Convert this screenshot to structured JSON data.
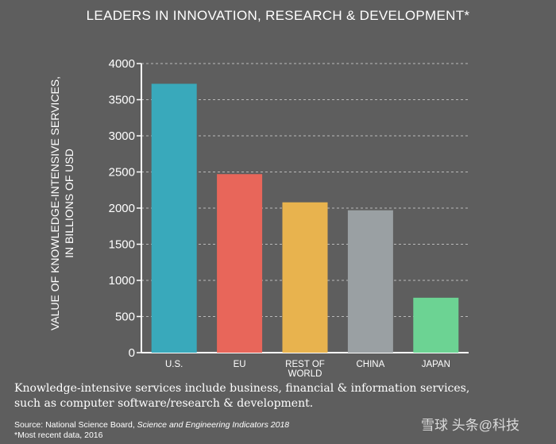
{
  "title": "LEADERS IN INNOVATION, RESEARCH & DEVELOPMENT*",
  "ylabel_line1": "VALUE OF KNOWLEDGE-INTENSIVE SERVICES,",
  "ylabel_line2": "IN BILLIONS OF USD",
  "description_line1": "Knowledge-intensive services include business, financial & information services,",
  "description_line2": "such as computer software/research & development.",
  "source_prefix": "Source: National Science Board, ",
  "source_title": "Science and Engineering Indicators 2018",
  "footnote": "*Most recent data, 2016",
  "watermark": "雪球 头条@科技",
  "chart_data": {
    "type": "bar",
    "title": "LEADERS IN INNOVATION, RESEARCH & DEVELOPMENT*",
    "xlabel": "",
    "ylabel": "VALUE OF KNOWLEDGE-INTENSIVE SERVICES, IN BILLIONS OF USD",
    "categories": [
      "U.S.",
      "EU",
      "REST OF WORLD",
      "CHINA",
      "JAPAN"
    ],
    "category_lines": [
      [
        "U.S."
      ],
      [
        "EU"
      ],
      [
        "REST OF",
        "WORLD"
      ],
      [
        "CHINA"
      ],
      [
        "JAPAN"
      ]
    ],
    "values": [
      3720,
      2470,
      2080,
      1970,
      760
    ],
    "colors": [
      "#39a9bb",
      "#e8665a",
      "#e8b34e",
      "#9aa0a3",
      "#6cd393"
    ],
    "ylim": [
      0,
      4000
    ],
    "yticks": [
      0,
      500,
      1000,
      1500,
      2000,
      2500,
      3000,
      3500,
      4000
    ],
    "ytick_labels": [
      "0",
      "500",
      "1000",
      "1500",
      "2000",
      "2500",
      "3000",
      "3500",
      "4000"
    ],
    "grid": true
  }
}
